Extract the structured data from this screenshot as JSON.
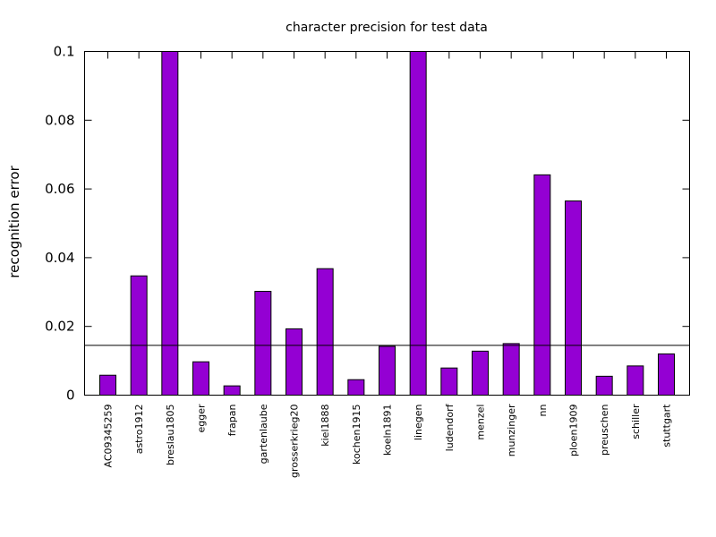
{
  "chart_data": {
    "type": "bar",
    "title": "character precision for test data",
    "xlabel": "",
    "ylabel": "recognition error",
    "ylim": [
      0,
      0.1
    ],
    "yticks": [
      "0",
      "0.02",
      "0.04",
      "0.06",
      "0.08",
      "0.1"
    ],
    "grid": false,
    "bar_color": "#9400d3",
    "reference_line": 0.0145,
    "categories": [
      "AC09345259",
      "astro1912",
      "breslau1805",
      "egger",
      "frapan",
      "gartenlaube",
      "grosserkrieg20",
      "kiel1888",
      "kochen1915",
      "koeln1891",
      "linegen",
      "ludendorf",
      "menzel",
      "munzinger",
      "nn",
      "ploen1909",
      "preuschen",
      "schiller",
      "stuttgart"
    ],
    "values": [
      0.0058,
      0.0347,
      0.1,
      0.0097,
      0.0027,
      0.0302,
      0.0193,
      0.0368,
      0.0045,
      0.0142,
      0.1,
      0.0079,
      0.0128,
      0.015,
      0.0641,
      0.0565,
      0.0055,
      0.0085,
      0.012
    ]
  }
}
